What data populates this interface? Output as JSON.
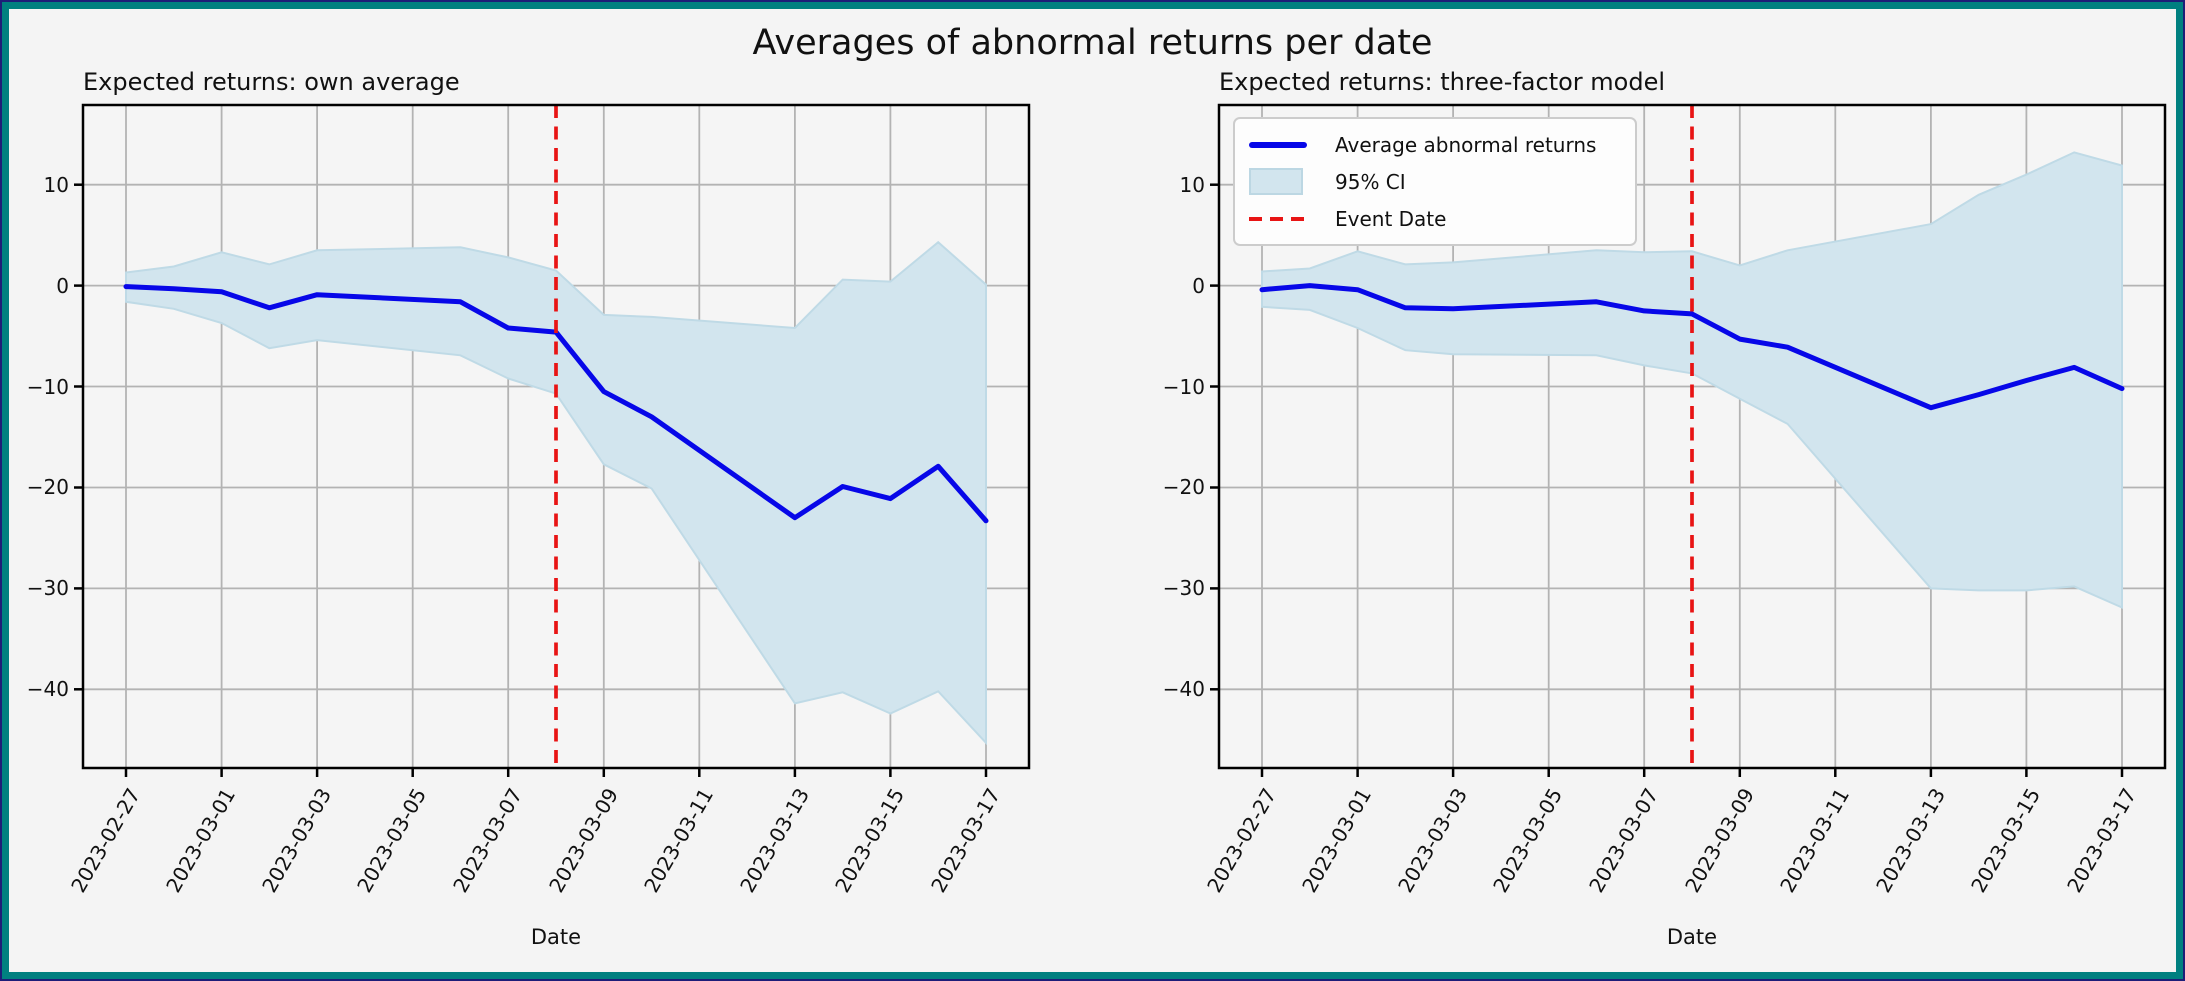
{
  "figure": {
    "suptitle": "Averages of abnormal returns per date",
    "frame_color": "#008080",
    "outer_edge_color": "#1d1d78",
    "background_color": "#f4f4f4"
  },
  "style": {
    "line_color": "#0707e8",
    "ci_fill_color": "#d2e5ee",
    "ci_edge_color": "#bfdae6",
    "event_line_color": "#e81414",
    "grid_color": "#b3b3b3",
    "spine_color": "#000000",
    "plot_background": "#f5f5f5",
    "legend_background": "#fdfdfd",
    "legend_border": "#cccccc",
    "text_color": "#111111"
  },
  "legend": {
    "items": [
      {
        "label": "Average abnormal returns",
        "swatch": "line"
      },
      {
        "label": "95% CI",
        "swatch": "patch"
      },
      {
        "label": "Event Date",
        "swatch": "dashed-line"
      }
    ]
  },
  "chart_data": [
    {
      "type": "line",
      "title": "Expected returns: own average",
      "xlabel": "Date",
      "x": [
        "2023-02-27",
        "2023-02-28",
        "2023-03-01",
        "2023-03-02",
        "2023-03-03",
        "2023-03-06",
        "2023-03-07",
        "2023-03-08",
        "2023-03-09",
        "2023-03-10",
        "2023-03-13",
        "2023-03-14",
        "2023-03-15",
        "2023-03-16",
        "2023-03-17"
      ],
      "series": [
        {
          "name": "Average abnormal returns",
          "values": [
            -0.1,
            -0.3,
            -0.6,
            -2.2,
            -0.9,
            -1.6,
            -4.2,
            -4.6,
            -10.5,
            -13.0,
            -23.0,
            -19.9,
            -21.1,
            -17.9,
            -23.3
          ]
        },
        {
          "name": "95% CI upper",
          "values": [
            1.3,
            1.9,
            3.3,
            2.1,
            3.5,
            3.8,
            2.8,
            1.5,
            -2.9,
            -3.1,
            -4.2,
            0.6,
            0.4,
            4.3,
            0.1
          ]
        },
        {
          "name": "95% CI lower",
          "values": [
            -1.6,
            -2.3,
            -3.7,
            -6.2,
            -5.4,
            -6.9,
            -9.2,
            -10.7,
            -17.7,
            -20.1,
            -41.4,
            -40.3,
            -42.4,
            -40.2,
            -45.3
          ]
        }
      ],
      "event_date": "2023-03-08",
      "x_tick_labels": [
        "2023-02-27",
        "2023-03-01",
        "2023-03-03",
        "2023-03-05",
        "2023-03-07",
        "2023-03-09",
        "2023-03-11",
        "2023-03-13",
        "2023-03-15",
        "2023-03-17"
      ],
      "y_ticks": [
        10,
        0,
        -10,
        -20,
        -30,
        -40
      ],
      "y_tick_labels": [
        "10",
        "0",
        "−10",
        "−20",
        "−30",
        "−40"
      ],
      "ylim": [
        -47.8,
        17.9
      ],
      "xlim_days": [
        -0.9,
        18.9
      ],
      "grid": true,
      "legend": false
    },
    {
      "type": "line",
      "title": "Expected returns: three-factor model",
      "xlabel": "Date",
      "x": [
        "2023-02-27",
        "2023-02-28",
        "2023-03-01",
        "2023-03-02",
        "2023-03-03",
        "2023-03-06",
        "2023-03-07",
        "2023-03-08",
        "2023-03-09",
        "2023-03-10",
        "2023-03-13",
        "2023-03-14",
        "2023-03-15",
        "2023-03-16",
        "2023-03-17"
      ],
      "series": [
        {
          "name": "Average abnormal returns",
          "values": [
            -0.4,
            0.0,
            -0.4,
            -2.2,
            -2.3,
            -1.6,
            -2.5,
            -2.8,
            -5.3,
            -6.1,
            -12.1,
            -10.8,
            -9.4,
            -8.1,
            -10.2
          ]
        },
        {
          "name": "95% CI upper",
          "values": [
            1.4,
            1.7,
            3.4,
            2.1,
            2.3,
            3.5,
            3.3,
            3.4,
            2.0,
            3.5,
            6.1,
            9.0,
            11.0,
            13.2,
            11.9
          ]
        },
        {
          "name": "95% CI lower",
          "values": [
            -2.1,
            -2.4,
            -4.2,
            -6.4,
            -6.8,
            -6.9,
            -7.9,
            -8.7,
            -11.2,
            -13.7,
            -30.0,
            -30.2,
            -30.2,
            -29.8,
            -31.9
          ]
        }
      ],
      "event_date": "2023-03-08",
      "x_tick_labels": [
        "2023-02-27",
        "2023-03-01",
        "2023-03-03",
        "2023-03-05",
        "2023-03-07",
        "2023-03-09",
        "2023-03-11",
        "2023-03-13",
        "2023-03-15",
        "2023-03-17"
      ],
      "y_ticks": [
        10,
        0,
        -10,
        -20,
        -30,
        -40
      ],
      "y_tick_labels": [
        "10",
        "0",
        "−10",
        "−20",
        "−30",
        "−40"
      ],
      "ylim": [
        -47.8,
        17.9
      ],
      "xlim_days": [
        -0.9,
        18.9
      ],
      "grid": true,
      "legend": true,
      "legend_position": "upper left"
    }
  ]
}
